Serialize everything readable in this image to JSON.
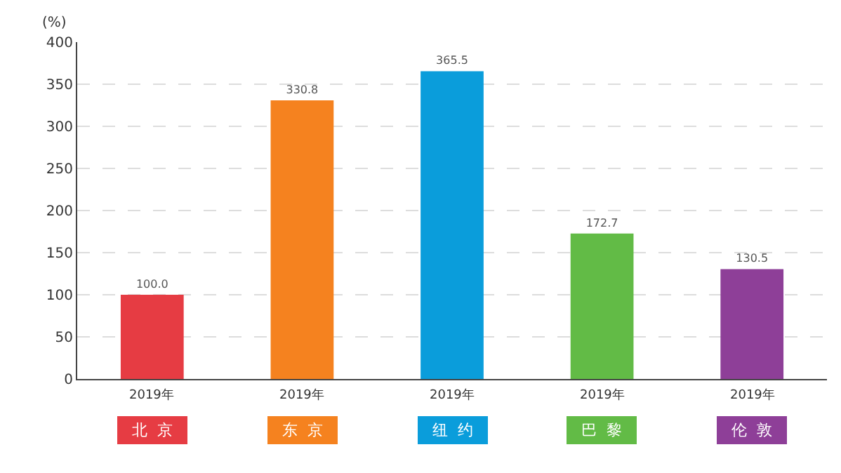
{
  "chart_data": {
    "type": "bar",
    "ylabel": "(%)",
    "categories": [
      "北京",
      "东京",
      "纽约",
      "巴黎",
      "伦敦"
    ],
    "values": [
      100.0,
      330.8,
      365.5,
      172.7,
      130.5
    ],
    "colors": [
      "#e63c43",
      "#f5821f",
      "#0a9ddb",
      "#62bb46",
      "#8e3f98"
    ],
    "value_labels": [
      "100.0",
      "330.8",
      "365.5",
      "172.7",
      "130.5"
    ],
    "ylim": [
      0,
      400
    ],
    "yticks": [
      0,
      50,
      100,
      150,
      200,
      250,
      300,
      350,
      400
    ],
    "grid": "y",
    "annotations": [
      {
        "text": "2019年",
        "x": "北京",
        "y": 0
      },
      {
        "text": "2019年",
        "x": "东京",
        "y": 0
      },
      {
        "text": "2019年",
        "x": "纽约",
        "y": 0
      },
      {
        "text": "2019年",
        "x": "巴黎",
        "y": 0
      },
      {
        "text": "2019年",
        "x": "伦敦",
        "y": 0
      }
    ]
  }
}
